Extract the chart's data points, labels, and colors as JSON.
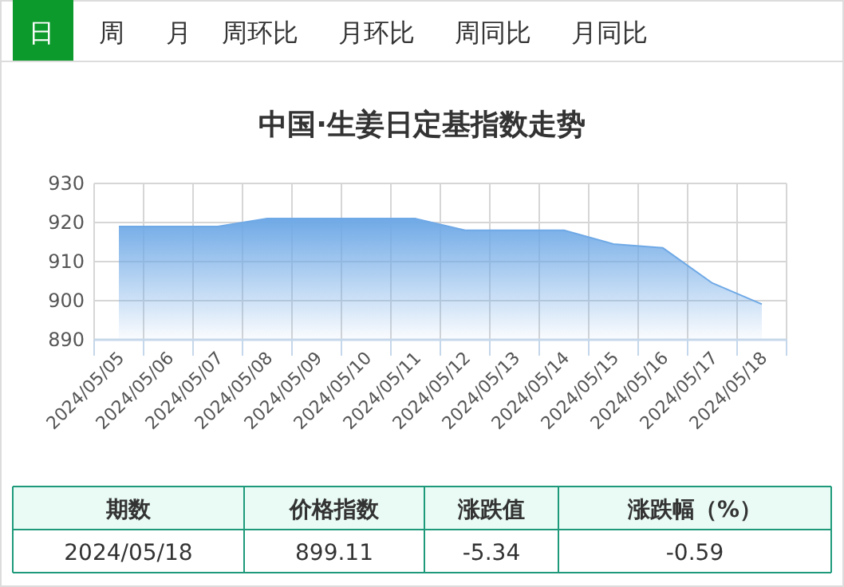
{
  "chart_data": {
    "type": "area",
    "title": "中国·生姜日定基指数走势",
    "categories": [
      "2024/05/05",
      "2024/05/06",
      "2024/05/07",
      "2024/05/08",
      "2024/05/09",
      "2024/05/10",
      "2024/05/11",
      "2024/05/12",
      "2024/05/13",
      "2024/05/14",
      "2024/05/15",
      "2024/05/16",
      "2024/05/17",
      "2024/05/18"
    ],
    "series": [
      {
        "color": "#6fa9e6",
        "values": [
          919,
          919,
          919,
          921,
          921,
          921,
          921,
          918,
          918,
          918,
          914.5,
          913.5,
          904.5,
          899.1
        ]
      }
    ],
    "ylim": [
      890,
      930
    ],
    "yticks": [
      890,
      900,
      910,
      920,
      930
    ],
    "grid": true,
    "annotations": [
      "日",
      "周",
      "月",
      "周环比",
      "月环比",
      "周同比",
      "月同比",
      "期数",
      "价格指数",
      "涨跌值",
      "涨跌幅（%）",
      "2024/05/18",
      "899.11",
      "-5.34",
      "-0.59"
    ]
  }
}
